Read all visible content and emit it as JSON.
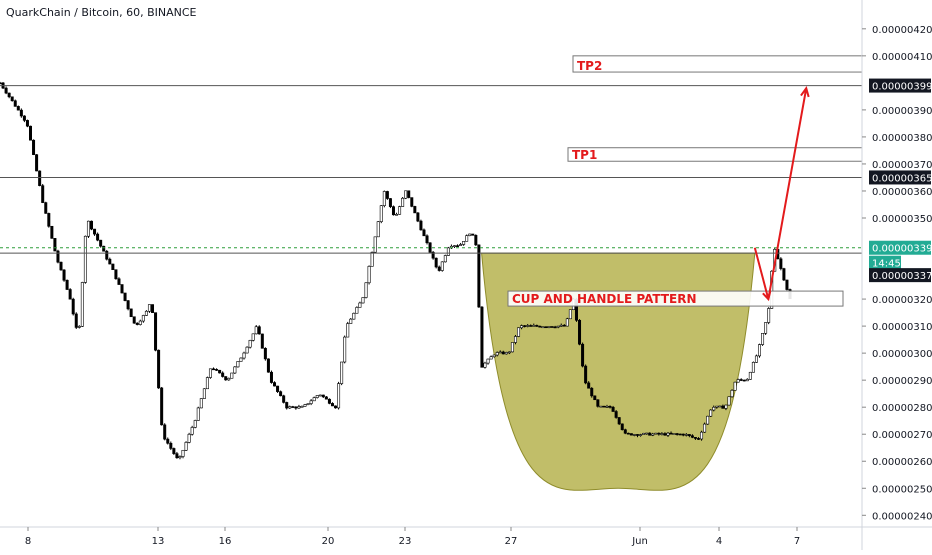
{
  "header": {
    "symbol_title": "QuarkChain / Bitcoin, 60, BINANCE"
  },
  "colors": {
    "up_candle": "#000000",
    "down_candle": "#000000",
    "cup_fill": "#b6b34f",
    "cup_stroke": "#8f8c2b",
    "arrow": "#e31a1c",
    "annotation_text": "#e31a1c",
    "dashed_level": "#2e9e3a",
    "axis_text": "#131722",
    "price_badge": "#131722",
    "current_price_badge": "#22ab94"
  },
  "annotations": {
    "tp1": "TP1",
    "tp2": "TP2",
    "pattern": "CUP AND HANDLE PATTERN"
  },
  "chart_data": {
    "type": "candlestick",
    "title": "QuarkChain / Bitcoin, 60, BINANCE",
    "ylim": [
      2.37e-06,
      4.27e-06
    ],
    "y_ticks": [
      "0.00000420",
      "0.00000410",
      "0.00000399",
      "0.00000390",
      "0.00000380",
      "0.00000370",
      "0.00000365",
      "0.00000360",
      "0.00000350",
      "0.00000339",
      "0.00000337",
      "0.00000320",
      "0.00000310",
      "0.00000300",
      "0.00000290",
      "0.00000280",
      "0.00000270",
      "0.00000260",
      "0.00000250",
      "0.00000240"
    ],
    "x_ticks": [
      "8",
      "13",
      "16",
      "20",
      "23",
      "27",
      "Jun",
      "4",
      "7"
    ],
    "horizontal_levels": [
      {
        "price": 3.99e-06,
        "label": "0.00000399",
        "style": "solid"
      },
      {
        "price": 3.65e-06,
        "label": "0.00000365",
        "style": "solid"
      },
      {
        "price": 3.37e-06,
        "label": "0.00000337",
        "style": "solid"
      },
      {
        "price": 3.39e-06,
        "label": "0.00000339",
        "style": "dashed",
        "current": true,
        "countdown": "14:45"
      }
    ],
    "target_boxes": [
      {
        "label": "TP2",
        "price_top": 4.1e-06,
        "price_bottom": 4.04e-06
      },
      {
        "label": "TP1",
        "price_top": 3.76e-06,
        "price_bottom": 3.71e-06
      }
    ],
    "pattern_label": "CUP AND HANDLE PATTERN",
    "price_path": [
      [
        0,
        4e-06
      ],
      [
        1.0,
        3.85e-06
      ],
      [
        1.6,
        3.55e-06
      ],
      [
        2.1,
        3.35e-06
      ],
      [
        2.6,
        3.2e-06
      ],
      [
        2.9,
        3.05e-06
      ],
      [
        3.2,
        3.5e-06
      ],
      [
        3.7,
        3.4e-06
      ],
      [
        4.2,
        3.3e-06
      ],
      [
        4.6,
        3.2e-06
      ],
      [
        5.0,
        3.1e-06
      ],
      [
        5.4,
        3.15e-06
      ],
      [
        5.6,
        3.2e-06
      ],
      [
        6.0,
        2.7e-06
      ],
      [
        6.6,
        2.6e-06
      ],
      [
        7.2,
        2.75e-06
      ],
      [
        7.8,
        2.95e-06
      ],
      [
        8.4,
        2.9e-06
      ],
      [
        9.0,
        3e-06
      ],
      [
        9.5,
        3.1e-06
      ],
      [
        10.0,
        2.9e-06
      ],
      [
        10.6,
        2.8e-06
      ],
      [
        11.2,
        2.8e-06
      ],
      [
        11.8,
        2.85e-06
      ],
      [
        12.4,
        2.8e-06
      ],
      [
        12.8,
        3.1e-06
      ],
      [
        13.4,
        3.2e-06
      ],
      [
        13.8,
        3.4e-06
      ],
      [
        14.2,
        3.6e-06
      ],
      [
        14.6,
        3.5e-06
      ],
      [
        15.0,
        3.6e-06
      ],
      [
        15.4,
        3.5e-06
      ],
      [
        15.8,
        3.4e-06
      ],
      [
        16.2,
        3.3e-06
      ],
      [
        16.6,
        3.4e-06
      ],
      [
        17.0,
        3.4e-06
      ],
      [
        17.4,
        3.45e-06
      ],
      [
        17.6,
        3.4e-06
      ],
      [
        17.8,
        2.95e-06
      ],
      [
        18.3,
        3e-06
      ],
      [
        18.8,
        3e-06
      ],
      [
        19.2,
        3.1e-06
      ],
      [
        19.8,
        3.1e-06
      ],
      [
        20.4,
        3.1e-06
      ],
      [
        20.9,
        3.1e-06
      ],
      [
        21.2,
        3.2e-06
      ],
      [
        21.6,
        2.9e-06
      ],
      [
        22.1,
        2.8e-06
      ],
      [
        22.6,
        2.8e-06
      ],
      [
        23.1,
        2.7e-06
      ],
      [
        23.4,
        2.7e-06
      ],
      [
        23.8,
        2.7e-06
      ],
      [
        24.3,
        2.7e-06
      ],
      [
        24.8,
        2.7e-06
      ],
      [
        25.3,
        2.7e-06
      ],
      [
        25.8,
        2.68e-06
      ],
      [
        26.3,
        2.8e-06
      ],
      [
        26.8,
        2.8e-06
      ],
      [
        27.2,
        2.9e-06
      ],
      [
        27.6,
        2.9e-06
      ],
      [
        28.0,
        3e-06
      ],
      [
        28.4,
        3.15e-06
      ],
      [
        28.6,
        3.4e-06
      ],
      [
        28.9,
        3.3e-06
      ],
      [
        29.2,
        3.2e-06
      ]
    ],
    "price_x_range": [
      0,
      29.2
    ],
    "cup": {
      "left_x": 17.8,
      "right_x": 27.9,
      "rim_price": 3.37e-06,
      "bottom_price": 2.5e-06
    },
    "arrow_path": [
      [
        27.9,
        3.39e-06
      ],
      [
        28.4,
        3.2e-06
      ],
      [
        29.8,
        3.98e-06
      ]
    ]
  }
}
